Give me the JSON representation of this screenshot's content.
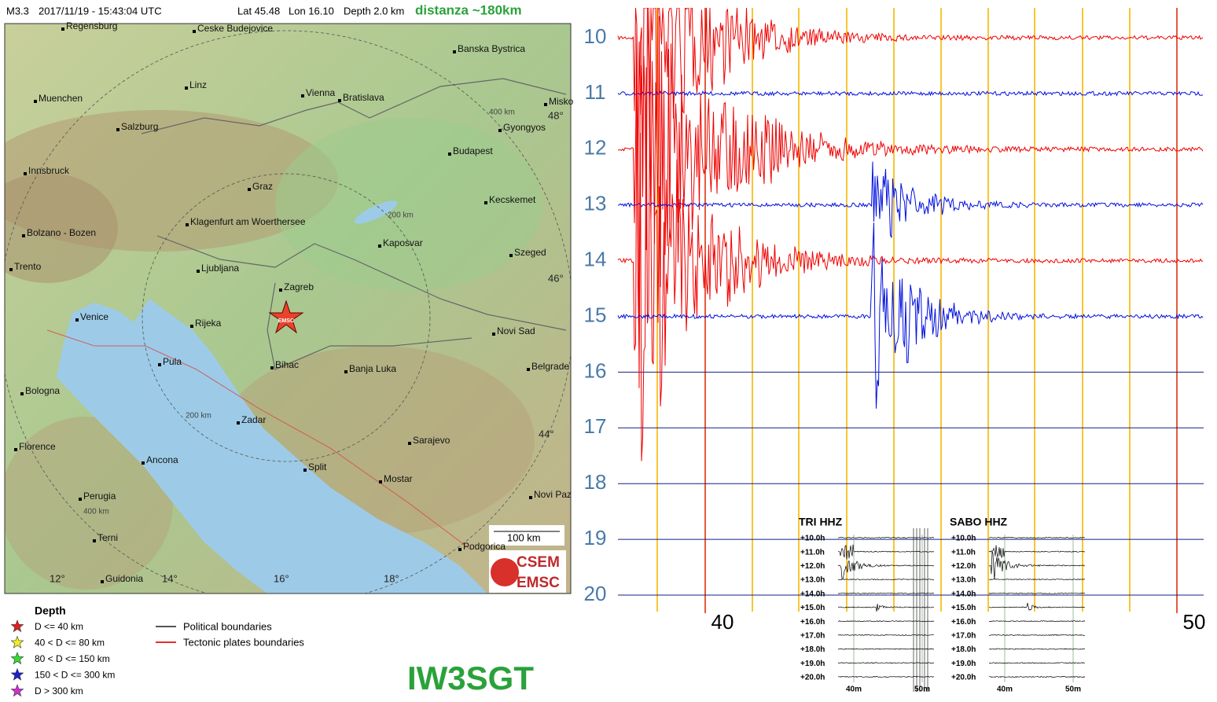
{
  "header": {
    "magnitude": "M3.3",
    "time": "2017/11/19 - 15:43:04 UTC",
    "lat": "Lat 45.48",
    "lon": "Lon 16.10",
    "depth": "Depth   2.0 km",
    "distance": "distanza ~180km"
  },
  "map": {
    "cities": [
      "Regensburg",
      "Ceske Budejovice",
      "Banska Bystrica",
      "Linz",
      "Muenchen",
      "Vienna",
      "Bratislava",
      "Misko",
      "Salzburg",
      "Gyongyos",
      "Budapest",
      "Innsbruck",
      "Graz",
      "Kecskemet",
      "Klagenfurt am Woerthersee",
      "Bolzano - Bozen",
      "Kaposvar",
      "Szeged",
      "Trento",
      "Ljubljana",
      "Zagreb",
      "Venice",
      "Rijeka",
      "Novi Sad",
      "Pula",
      "Belgrade",
      "Bihac",
      "Banja Luka",
      "Bologna",
      "Zadar",
      "Sarajevo",
      "Florence",
      "Ancona",
      "Split",
      "Mostar",
      "Perugia",
      "Novi Paz",
      "Terni",
      "Podgorica",
      "Guidonia"
    ],
    "lat_labels": [
      "48°",
      "46°",
      "44°"
    ],
    "lon_labels": [
      "12°",
      "14°",
      "16°",
      "18°"
    ],
    "ring_labels": [
      "400 km",
      "200 km",
      "200 km",
      "400 km"
    ],
    "scale": "100 km",
    "epicenter_label": "EMSC",
    "logo": [
      "CSEM",
      "EMSC"
    ]
  },
  "legend": {
    "title": "Depth",
    "depth_items": [
      "D <= 40 km",
      "40 < D <= 80 km",
      "80 < D <= 150 km",
      "150 < D <= 300 km",
      "D > 300 km"
    ],
    "boundary_items": [
      "Political boundaries",
      "Tectonic plates boundaries"
    ]
  },
  "seismogram": {
    "hours": [
      "10",
      "11",
      "12",
      "13",
      "14",
      "15",
      "16",
      "17",
      "18",
      "19",
      "20"
    ],
    "minutes": [
      "40",
      "50"
    ]
  },
  "insets": [
    {
      "title": "TRI HHZ",
      "rows": [
        "+10.0h",
        "+11.0h",
        "+12.0h",
        "+13.0h",
        "+14.0h",
        "+15.0h",
        "+16.0h",
        "+17.0h",
        "+18.0h",
        "+19.0h",
        "+20.0h"
      ],
      "minutes": [
        "40m",
        "50m"
      ]
    },
    {
      "title": "SABO HHZ",
      "rows": [
        "+10.0h",
        "+11.0h",
        "+12.0h",
        "+13.0h",
        "+14.0h",
        "+15.0h",
        "+16.0h",
        "+17.0h",
        "+18.0h",
        "+19.0h",
        "+20.0h"
      ],
      "minutes": [
        "40m",
        "50m"
      ]
    }
  ],
  "callsign": "IW3SGT"
}
